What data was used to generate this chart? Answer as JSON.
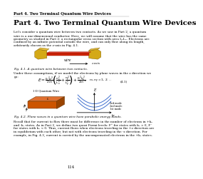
{
  "title_small": "Part 4. Two Terminal Quantum Wire Devices",
  "title_large": "Part 4. Two Terminal Quantum Wire Devices",
  "background_color": "#ffffff",
  "text_color": "#000000",
  "page_number": "114",
  "fig1_caption": "Fig. 4.1. A quantum wire between two contacts.",
  "fig2_caption": "Fig. 4.2. Plane waves in a quantum wire have parabolic energy bands.",
  "body1": [
    "Let's consider a quantum wire between two contacts. As we saw in Part 2, a quantum",
    "wire is a one-dimensional conductor. Here, we will assume that the wire has the same",
    "geometry as studied in Part 2: a rectangular cross section with area LₓLₕ. Electrons are",
    "confined by an infinite potential outside the wire, and can only flow along its length,",
    "arbitrarily chosen as the z-axis in Fig. 4.1."
  ],
  "body2": [
    "Under these assumptions, if we model the electrons by plane waves in the z direction we",
    "go:"
  ],
  "body3": [
    "Recall that for current to flow there must be difference in the number of electrons in +kₓ",
    "and -kₓ states. As in Part 2, we define two quasi Fermi levels: F⁺ for states with kₓ > 0, F⁻",
    "for states with kₓ < 0. Thus, current flows when electrons traveling in the +z direction are",
    "in equilibrium with each other, but not with electrons traveling in the -z direction. For",
    "example, in Fig. 4.3, current is carried by the uncompensated electrons in the +kₓ states."
  ],
  "eq_number": "(4.1)",
  "contact_color_face": "#D4A917",
  "contact_color_top": "#E8C040",
  "contact_color_side": "#A07810",
  "contact_edge": "#7A5C00",
  "wire_color": "#CC2200",
  "wire_color2": "#991100",
  "box_color_front": "#CC5500",
  "box_color_top": "#E07030",
  "box_color_right": "#994400",
  "band_color": "#3366CC"
}
